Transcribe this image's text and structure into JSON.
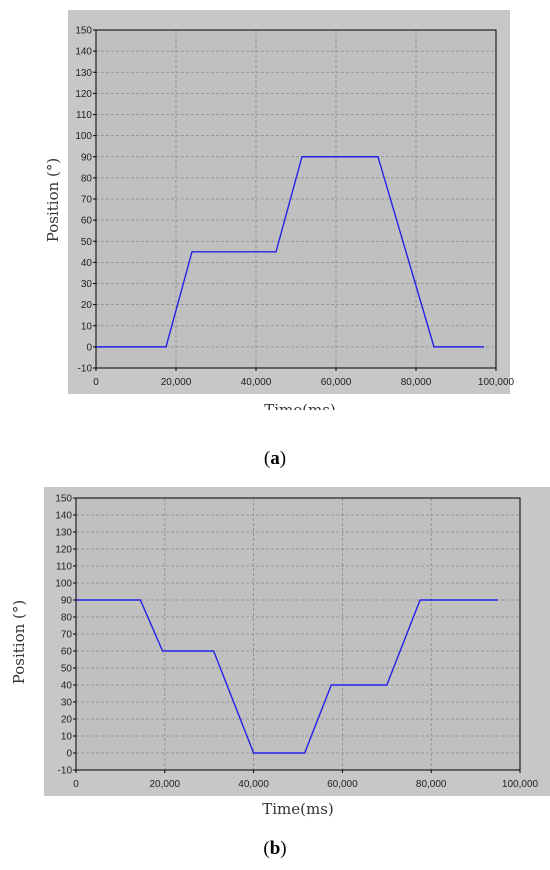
{
  "chart_data": [
    {
      "type": "line",
      "xlabel": "Time(ms)",
      "ylabel": "Position (°)",
      "xlim": [
        0,
        100000
      ],
      "ylim": [
        -10,
        150
      ],
      "x_ticks": [
        0,
        20000,
        40000,
        60000,
        80000,
        100000
      ],
      "x_tick_labels": [
        "0",
        "20,000",
        "40,000",
        "60,000",
        "80,000",
        "100,000"
      ],
      "y_ticks": [
        -10,
        0,
        10,
        20,
        30,
        40,
        50,
        60,
        70,
        80,
        90,
        100,
        110,
        120,
        130,
        140,
        150
      ],
      "grid": true,
      "series": [
        {
          "color": "#2323e6",
          "x": [
            0,
            17500,
            24000,
            45000,
            51500,
            70500,
            84500,
            97000
          ],
          "y": [
            0,
            0,
            45,
            45,
            90,
            90,
            0,
            0
          ]
        }
      ]
    },
    {
      "type": "line",
      "xlabel": "Time(ms)",
      "ylabel": "Position (°)",
      "xlim": [
        0,
        100000
      ],
      "ylim": [
        -10,
        150
      ],
      "x_ticks": [
        0,
        20000,
        40000,
        60000,
        80000,
        100000
      ],
      "x_tick_labels": [
        "0",
        "20,000",
        "40,000",
        "60,000",
        "80,000",
        "100,000"
      ],
      "y_ticks": [
        -10,
        0,
        10,
        20,
        30,
        40,
        50,
        60,
        70,
        80,
        90,
        100,
        110,
        120,
        130,
        140,
        150
      ],
      "grid": true,
      "series": [
        {
          "color": "#2323e6",
          "x": [
            0,
            14500,
            19500,
            31000,
            40000,
            51500,
            57500,
            70000,
            77500,
            95000
          ],
          "y": [
            90,
            90,
            60,
            60,
            0,
            0,
            40,
            40,
            90,
            90
          ]
        }
      ]
    }
  ],
  "captions": {
    "a": "a",
    "b": "b"
  },
  "colors": {
    "frame_bg": "#c7c7c7",
    "plot_bg": "#c0c0c0",
    "grid": "#8a8a8a",
    "axis": "#000000"
  }
}
